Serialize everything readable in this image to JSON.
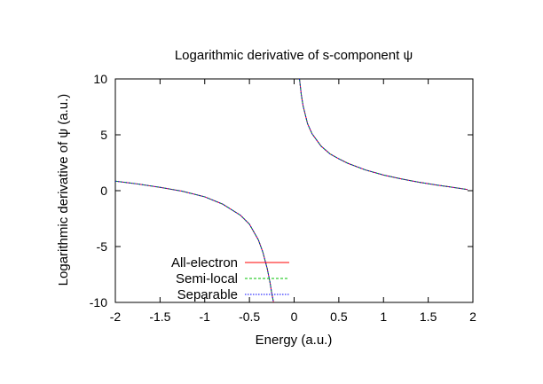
{
  "chart_data": {
    "type": "line",
    "title": "Logarithmic derivative of s-component ψ",
    "xlabel": "Energy (a.u.)",
    "ylabel": "Logarithmic derivative of ψ (a.u.)",
    "xlim": [
      -2,
      2
    ],
    "ylim": [
      -10,
      10
    ],
    "xticks": [
      -2,
      -1.5,
      -1,
      -0.5,
      0,
      0.5,
      1,
      1.5,
      2
    ],
    "yticks": [
      -10,
      -5,
      0,
      5,
      10
    ],
    "xtick_labels": [
      "-2",
      "-1.5",
      "-1",
      "-0.5",
      "0",
      "0.5",
      "1",
      "1.5",
      "2"
    ],
    "ytick_labels": [
      "-10",
      "-5",
      "0",
      "5",
      "10"
    ],
    "grid": false,
    "legend_position": "bottom-left",
    "series": [
      {
        "name": "All-electron",
        "color": "#ff0000",
        "dash": "solid",
        "segments": [
          {
            "x": [
              -2.0,
              -1.75,
              -1.5,
              -1.25,
              -1.0,
              -0.8,
              -0.6,
              -0.5,
              -0.4,
              -0.35,
              -0.3,
              -0.27,
              -0.25,
              -0.23
            ],
            "y": [
              0.85,
              0.6,
              0.3,
              -0.05,
              -0.55,
              -1.2,
              -2.2,
              -3.0,
              -4.4,
              -5.5,
              -7.0,
              -8.2,
              -9.2,
              -10.0
            ]
          },
          {
            "x": [
              0.06,
              0.08,
              0.1,
              0.15,
              0.2,
              0.3,
              0.4,
              0.5,
              0.6,
              0.8,
              1.0,
              1.2,
              1.4,
              1.6,
              1.8,
              1.94
            ],
            "y": [
              10.0,
              8.6,
              7.6,
              6.0,
              5.1,
              4.0,
              3.3,
              2.85,
              2.45,
              1.85,
              1.4,
              1.05,
              0.75,
              0.5,
              0.27,
              0.1
            ]
          }
        ]
      },
      {
        "name": "Semi-local",
        "color": "#00c000",
        "dash": "dashed",
        "segments": [
          {
            "x": [
              -2.0,
              -1.75,
              -1.5,
              -1.25,
              -1.0,
              -0.8,
              -0.6,
              -0.5,
              -0.4,
              -0.35,
              -0.3,
              -0.27,
              -0.25,
              -0.23
            ],
            "y": [
              0.85,
              0.6,
              0.3,
              -0.05,
              -0.55,
              -1.2,
              -2.2,
              -3.0,
              -4.4,
              -5.5,
              -7.0,
              -8.2,
              -9.2,
              -10.0
            ]
          },
          {
            "x": [
              0.06,
              0.08,
              0.1,
              0.15,
              0.2,
              0.3,
              0.4,
              0.5,
              0.6,
              0.8,
              1.0,
              1.2,
              1.4,
              1.6,
              1.8,
              1.94
            ],
            "y": [
              10.0,
              8.6,
              7.6,
              6.0,
              5.1,
              4.0,
              3.3,
              2.85,
              2.45,
              1.85,
              1.4,
              1.05,
              0.75,
              0.5,
              0.27,
              0.1
            ]
          }
        ]
      },
      {
        "name": "Separable",
        "color": "#0000ff",
        "dash": "dotted",
        "segments": [
          {
            "x": [
              -2.0,
              -1.75,
              -1.5,
              -1.25,
              -1.0,
              -0.8,
              -0.6,
              -0.5,
              -0.4,
              -0.35,
              -0.3,
              -0.27,
              -0.25,
              -0.23
            ],
            "y": [
              0.85,
              0.6,
              0.3,
              -0.05,
              -0.55,
              -1.2,
              -2.2,
              -3.0,
              -4.4,
              -5.5,
              -7.0,
              -8.2,
              -9.2,
              -10.0
            ]
          },
          {
            "x": [
              0.06,
              0.08,
              0.1,
              0.15,
              0.2,
              0.3,
              0.4,
              0.5,
              0.6,
              0.8,
              1.0,
              1.2,
              1.4,
              1.6,
              1.8,
              1.94
            ],
            "y": [
              10.0,
              8.6,
              7.6,
              6.0,
              5.1,
              4.0,
              3.3,
              2.85,
              2.45,
              1.85,
              1.4,
              1.05,
              0.75,
              0.5,
              0.27,
              0.1
            ]
          }
        ]
      }
    ]
  }
}
